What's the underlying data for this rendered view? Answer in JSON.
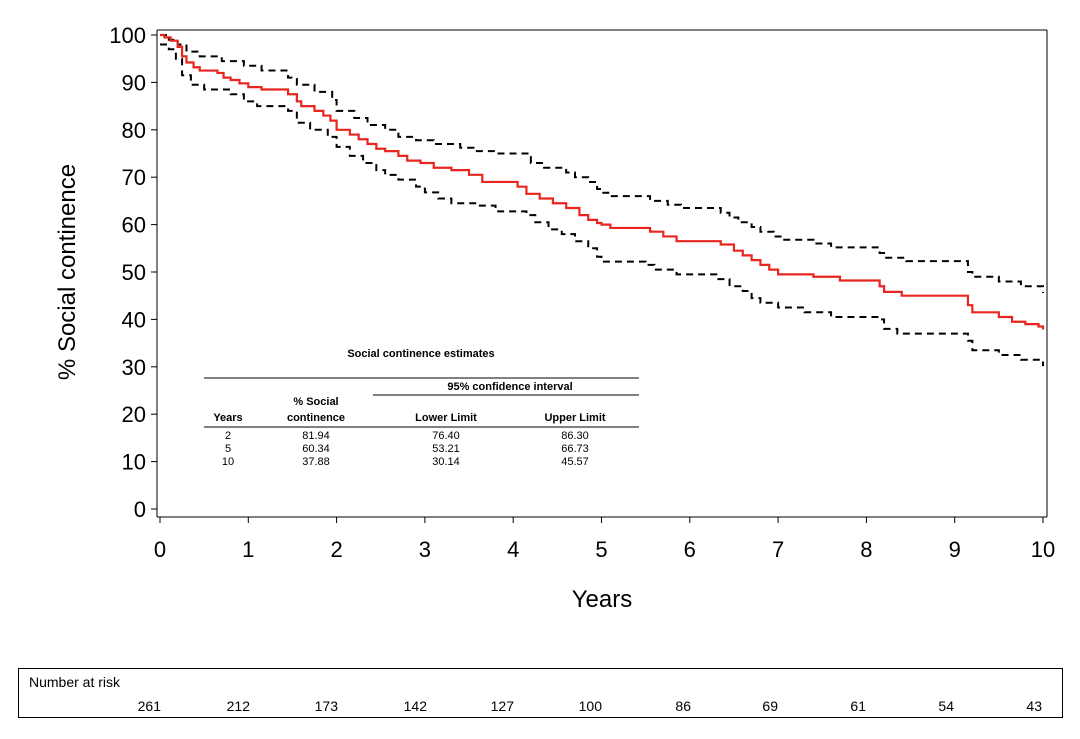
{
  "chart_data": {
    "type": "line",
    "xlabel": "Years",
    "ylabel": "% Social continence",
    "xlim": [
      0,
      10
    ],
    "ylim": [
      0,
      100
    ],
    "xticks": [
      "0",
      "1",
      "2",
      "3",
      "4",
      "5",
      "6",
      "7",
      "8",
      "9",
      "10"
    ],
    "yticks": [
      "0",
      "10",
      "20",
      "30",
      "40",
      "50",
      "60",
      "70",
      "80",
      "90",
      "100"
    ],
    "grid": false,
    "series": [
      {
        "role": "estimate",
        "color": "#e8251f",
        "style": "solid step",
        "points": [
          [
            0,
            100
          ],
          [
            0.05,
            99.5
          ],
          [
            0.12,
            98.8
          ],
          [
            0.2,
            97.5
          ],
          [
            0.25,
            95.5
          ],
          [
            0.3,
            94.2
          ],
          [
            0.38,
            93.2
          ],
          [
            0.45,
            92.5
          ],
          [
            0.65,
            92
          ],
          [
            0.72,
            91
          ],
          [
            0.8,
            90.5
          ],
          [
            0.9,
            89.8
          ],
          [
            1.0,
            89
          ],
          [
            1.15,
            88.5
          ],
          [
            1.35,
            88.5
          ],
          [
            1.45,
            87.5
          ],
          [
            1.55,
            86
          ],
          [
            1.6,
            85
          ],
          [
            1.75,
            84
          ],
          [
            1.85,
            83
          ],
          [
            1.93,
            81.94
          ],
          [
            2.0,
            80
          ],
          [
            2.15,
            79
          ],
          [
            2.25,
            78
          ],
          [
            2.35,
            77
          ],
          [
            2.45,
            76
          ],
          [
            2.55,
            75.5
          ],
          [
            2.7,
            74.5
          ],
          [
            2.8,
            73.5
          ],
          [
            2.95,
            73
          ],
          [
            3.1,
            72
          ],
          [
            3.3,
            71.5
          ],
          [
            3.5,
            70.5
          ],
          [
            3.65,
            69
          ],
          [
            3.8,
            69
          ],
          [
            4.05,
            68
          ],
          [
            4.15,
            66.5
          ],
          [
            4.3,
            65.5
          ],
          [
            4.45,
            64.5
          ],
          [
            4.6,
            63.5
          ],
          [
            4.75,
            62
          ],
          [
            4.85,
            61
          ],
          [
            4.95,
            60.34
          ],
          [
            5.0,
            60
          ],
          [
            5.1,
            59.3
          ],
          [
            5.55,
            58.5
          ],
          [
            5.7,
            57.5
          ],
          [
            5.85,
            56.5
          ],
          [
            6.35,
            55.8
          ],
          [
            6.5,
            54.5
          ],
          [
            6.6,
            53.5
          ],
          [
            6.7,
            52.5
          ],
          [
            6.8,
            51.5
          ],
          [
            6.9,
            50.5
          ],
          [
            7.0,
            49.5
          ],
          [
            7.4,
            49
          ],
          [
            7.7,
            48.2
          ],
          [
            8.15,
            47
          ],
          [
            8.2,
            45.8
          ],
          [
            8.4,
            45
          ],
          [
            9.15,
            43
          ],
          [
            9.2,
            41.5
          ],
          [
            9.5,
            40.5
          ],
          [
            9.65,
            39.5
          ],
          [
            9.8,
            39
          ],
          [
            9.95,
            38.5
          ],
          [
            10.0,
            37.88
          ]
        ]
      },
      {
        "role": "upper",
        "color": "#000000",
        "style": "dashed step",
        "points": [
          [
            0,
            100
          ],
          [
            0.1,
            99
          ],
          [
            0.2,
            98
          ],
          [
            0.3,
            96.5
          ],
          [
            0.45,
            95.5
          ],
          [
            0.7,
            94.5
          ],
          [
            0.95,
            93.5
          ],
          [
            1.15,
            92.5
          ],
          [
            1.45,
            91
          ],
          [
            1.55,
            89.5
          ],
          [
            1.75,
            88
          ],
          [
            1.95,
            86.3
          ],
          [
            2.0,
            84
          ],
          [
            2.2,
            82.5
          ],
          [
            2.35,
            81
          ],
          [
            2.55,
            80
          ],
          [
            2.7,
            78.5
          ],
          [
            2.9,
            77.8
          ],
          [
            3.1,
            77
          ],
          [
            3.4,
            76.2
          ],
          [
            3.55,
            75.5
          ],
          [
            3.8,
            75
          ],
          [
            4.2,
            73
          ],
          [
            4.35,
            72
          ],
          [
            4.6,
            71
          ],
          [
            4.7,
            70
          ],
          [
            4.85,
            69
          ],
          [
            4.95,
            67.5
          ],
          [
            5.0,
            66.73
          ],
          [
            5.1,
            66
          ],
          [
            5.55,
            65
          ],
          [
            5.75,
            64.2
          ],
          [
            5.9,
            63.5
          ],
          [
            6.35,
            62.5
          ],
          [
            6.45,
            61.5
          ],
          [
            6.55,
            60.5
          ],
          [
            6.7,
            59.5
          ],
          [
            6.8,
            58.5
          ],
          [
            6.95,
            57.5
          ],
          [
            7.05,
            56.8
          ],
          [
            7.4,
            56
          ],
          [
            7.6,
            55.2
          ],
          [
            8.15,
            54
          ],
          [
            8.2,
            53
          ],
          [
            8.45,
            52.3
          ],
          [
            9.15,
            50
          ],
          [
            9.2,
            49
          ],
          [
            9.5,
            48
          ],
          [
            9.75,
            47
          ],
          [
            10.0,
            45.57
          ]
        ]
      },
      {
        "role": "lower",
        "color": "#000000",
        "style": "dashed step",
        "points": [
          [
            0,
            98
          ],
          [
            0.1,
            97
          ],
          [
            0.18,
            95
          ],
          [
            0.25,
            91.5
          ],
          [
            0.35,
            89.5
          ],
          [
            0.5,
            88.5
          ],
          [
            0.8,
            87.5
          ],
          [
            0.95,
            86
          ],
          [
            1.1,
            85
          ],
          [
            1.45,
            84
          ],
          [
            1.55,
            81.5
          ],
          [
            1.7,
            80
          ],
          [
            1.9,
            78.5
          ],
          [
            2.0,
            76.4
          ],
          [
            2.15,
            74.5
          ],
          [
            2.3,
            73
          ],
          [
            2.45,
            71.5
          ],
          [
            2.55,
            70.5
          ],
          [
            2.7,
            69.5
          ],
          [
            2.9,
            68
          ],
          [
            3.0,
            66.8
          ],
          [
            3.15,
            65.5
          ],
          [
            3.3,
            64.5
          ],
          [
            3.6,
            64
          ],
          [
            3.8,
            62.8
          ],
          [
            4.15,
            62
          ],
          [
            4.25,
            60.5
          ],
          [
            4.4,
            59
          ],
          [
            4.55,
            58
          ],
          [
            4.7,
            56.5
          ],
          [
            4.85,
            55
          ],
          [
            4.95,
            53.21
          ],
          [
            5.0,
            52.2
          ],
          [
            5.5,
            51.5
          ],
          [
            5.6,
            50.5
          ],
          [
            5.85,
            49.5
          ],
          [
            6.3,
            48.5
          ],
          [
            6.45,
            47
          ],
          [
            6.6,
            46
          ],
          [
            6.7,
            44.5
          ],
          [
            6.8,
            43.5
          ],
          [
            7.0,
            42.5
          ],
          [
            7.3,
            41.5
          ],
          [
            7.6,
            40.5
          ],
          [
            8.15,
            40
          ],
          [
            8.2,
            38
          ],
          [
            8.35,
            37
          ],
          [
            9.15,
            35.5
          ],
          [
            9.2,
            33.5
          ],
          [
            9.5,
            32.5
          ],
          [
            9.75,
            31.5
          ],
          [
            10.0,
            30.14
          ]
        ]
      }
    ],
    "inset_table": {
      "title": "Social continence estimates",
      "ci_header": "95% confidence interval",
      "col_years": "Years",
      "col_pct_line1": "% Social",
      "col_pct_line2": "continence",
      "col_lower": "Lower Limit",
      "col_upper": "Upper Limit",
      "rows": [
        {
          "years": "2",
          "pct": "81.94",
          "lower": "76.40",
          "upper": "86.30"
        },
        {
          "years": "5",
          "pct": "60.34",
          "lower": "53.21",
          "upper": "66.73"
        },
        {
          "years": "10",
          "pct": "37.88",
          "lower": "30.14",
          "upper": "45.57"
        }
      ]
    },
    "risk_table": {
      "title": "Number at risk",
      "values": [
        "261",
        "212",
        "173",
        "142",
        "127",
        "100",
        "86",
        "69",
        "61",
        "54",
        "43"
      ]
    }
  }
}
